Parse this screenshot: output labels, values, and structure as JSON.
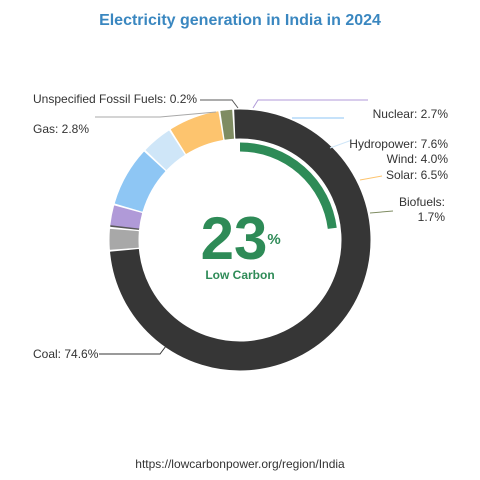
{
  "chart_data": {
    "type": "pie",
    "title": "Electricity generation in India in 2024",
    "slices": [
      {
        "name": "Coal",
        "value": 74.6,
        "label": "Coal: 74.6%",
        "color": "#363636"
      },
      {
        "name": "Gas",
        "value": 2.8,
        "label": "Gas: 2.8%",
        "color": "#a8a8a8"
      },
      {
        "name": "Unspecified Fossil Fuels",
        "value": 0.2,
        "label": "Unspecified Fossil Fuels: 0.2%",
        "color": "#585858"
      },
      {
        "name": "Nuclear",
        "value": 2.7,
        "label": "Nuclear: 2.7%",
        "color": "#b09ad8"
      },
      {
        "name": "Hydropower",
        "value": 7.6,
        "label": "Hydropower: 7.6%",
        "color": "#8ec6f4"
      },
      {
        "name": "Wind",
        "value": 4.0,
        "label": "Wind: 4.0%",
        "color": "#cfe6f8"
      },
      {
        "name": "Solar",
        "value": 6.5,
        "label": "Solar: 6.5%",
        "color": "#fdc46e"
      },
      {
        "name": "Biofuels",
        "value": 1.7,
        "label_lines": [
          "Biofuels:",
          "1.7%"
        ],
        "color": "#7f8c62"
      }
    ],
    "low_carbon": {
      "value": 23,
      "unit": "%",
      "label": "Low Carbon",
      "color": "#2e8b57"
    }
  },
  "source": "https://lowcarbonpower.org/region/India"
}
